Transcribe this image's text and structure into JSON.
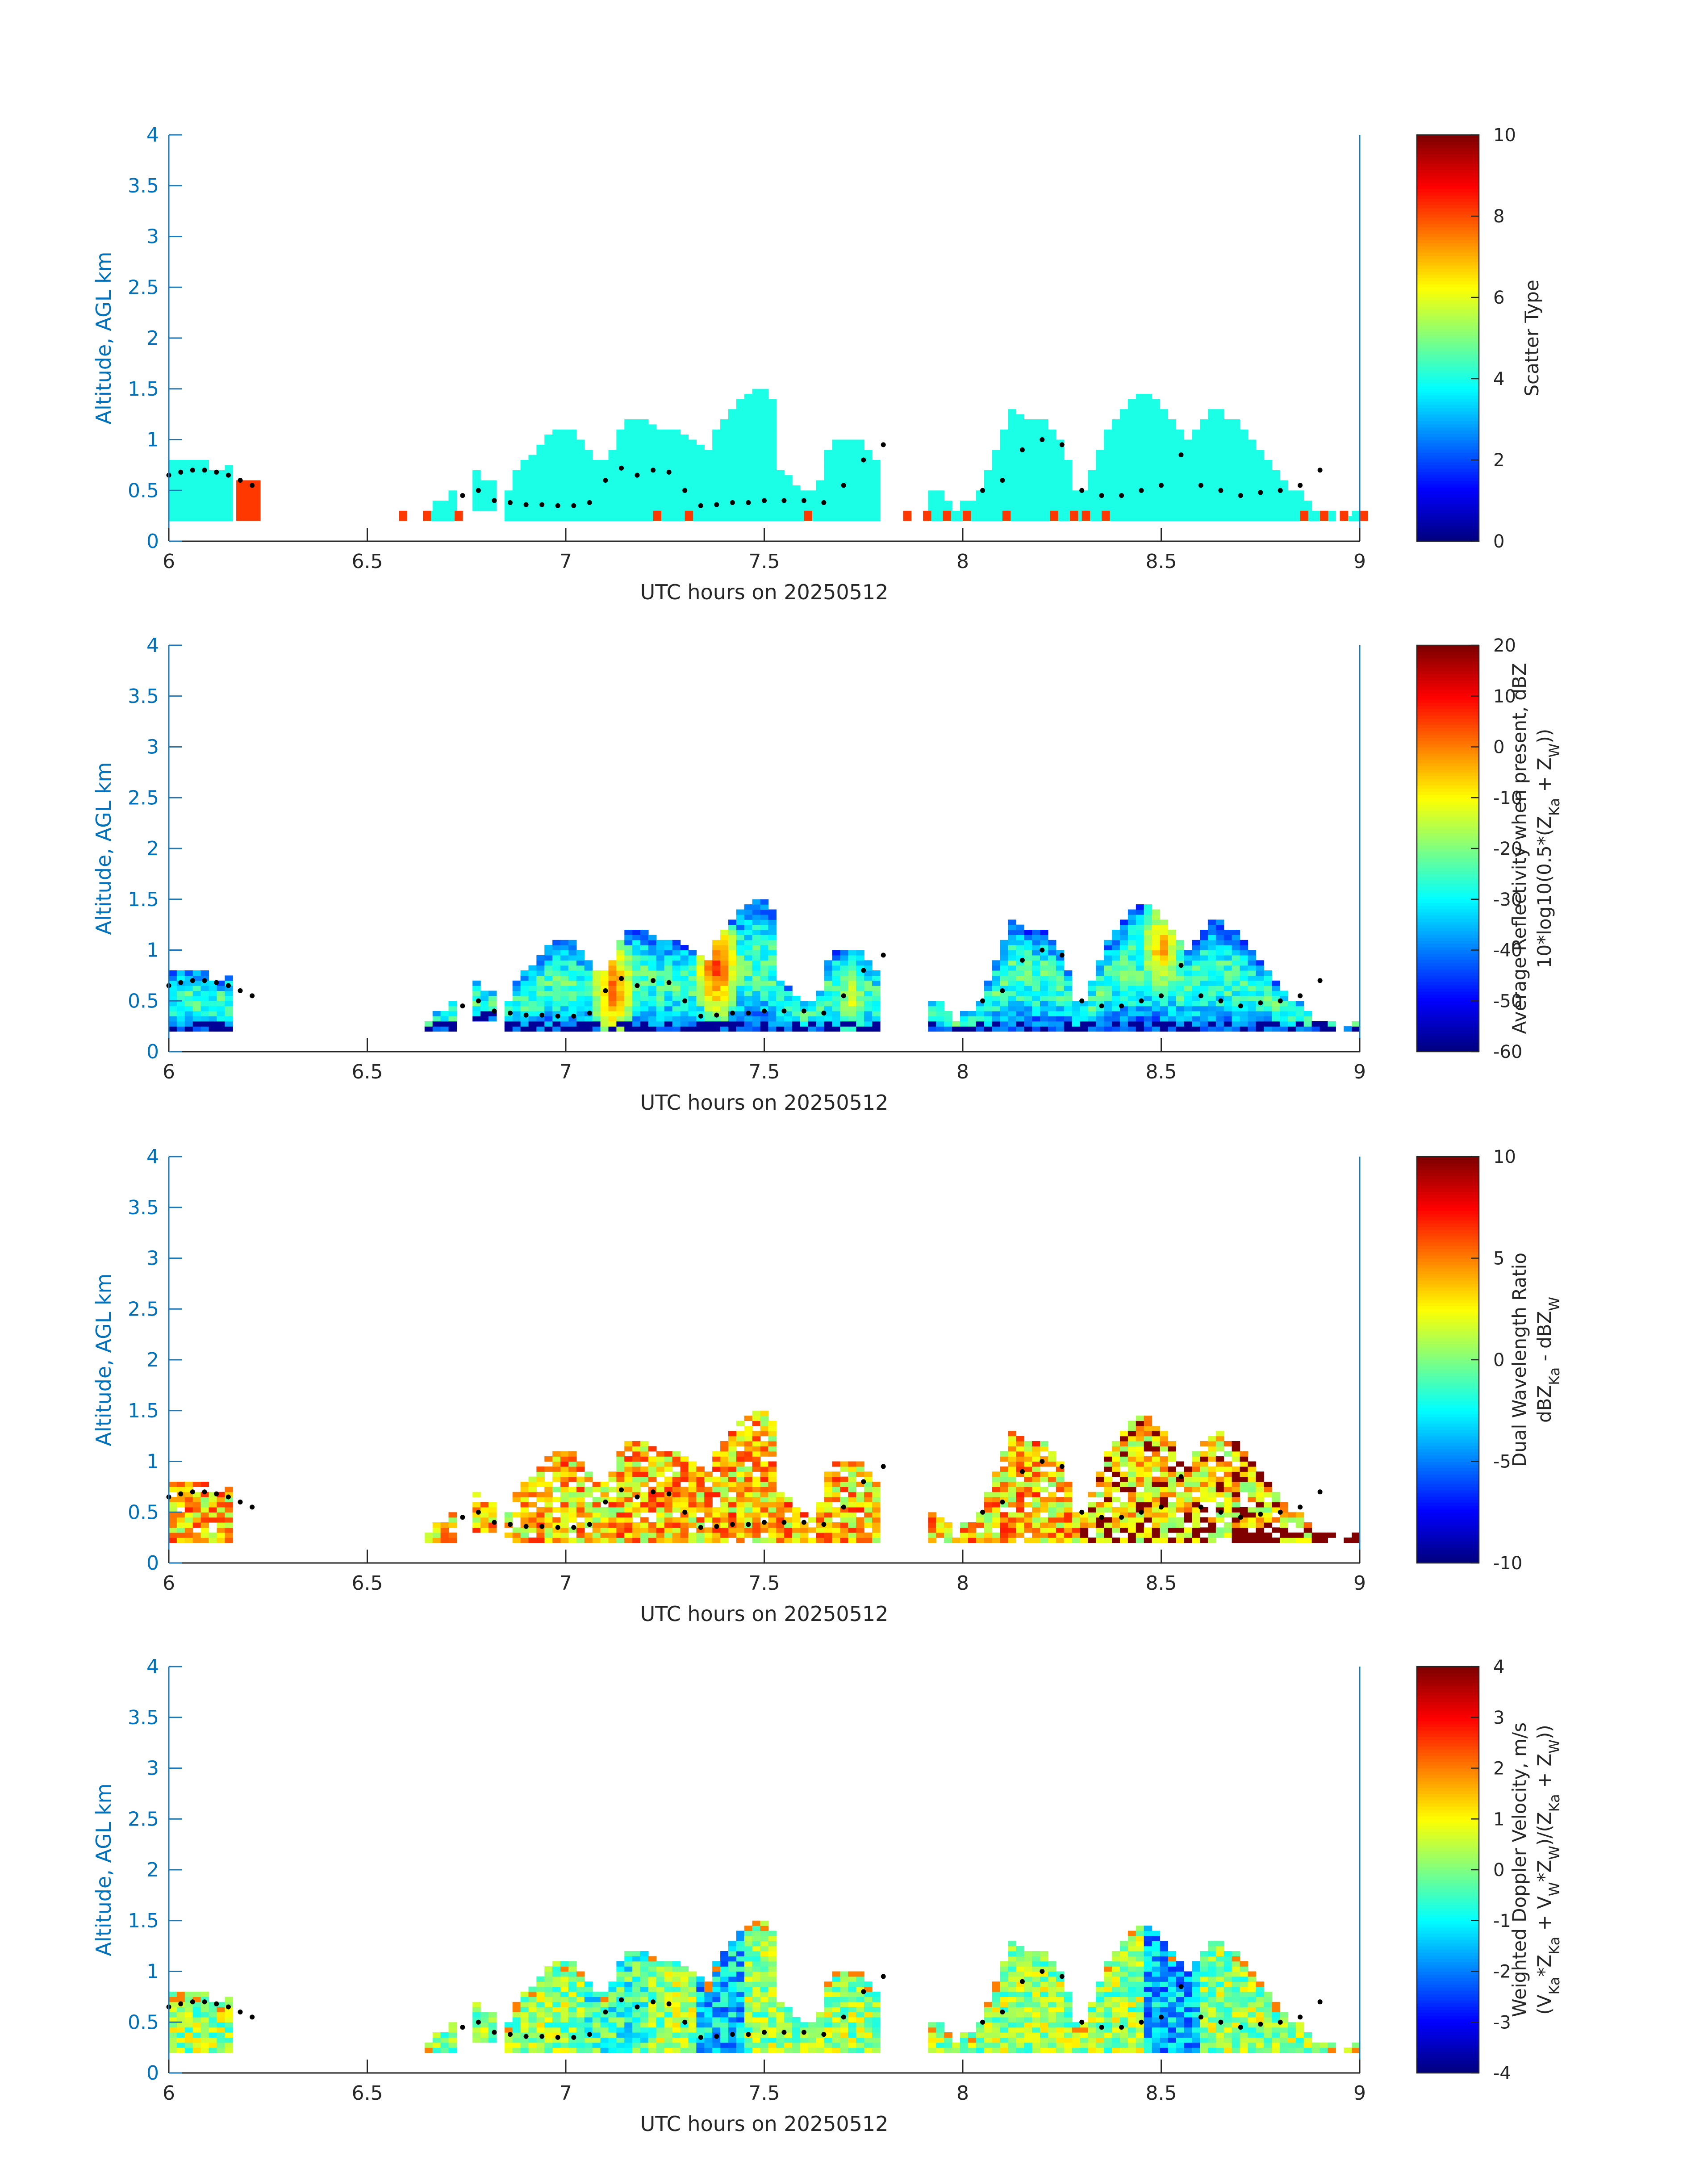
{
  "figure": {
    "panels_count": 4
  },
  "chart_data": [
    {
      "type": "heatmap",
      "title": "",
      "xlabel": "UTC hours on 20250512",
      "ylabel": "Altitude, AGL km",
      "xlim": [
        6,
        9
      ],
      "ylim": [
        0,
        4
      ],
      "xticks": [
        6,
        6.5,
        7,
        7.5,
        8,
        8.5,
        9
      ],
      "yticks": [
        0,
        0.5,
        1,
        1.5,
        2,
        2.5,
        3,
        3.5,
        4
      ],
      "colorbar": {
        "label_lines": [
          "Scatter Type"
        ],
        "ticks": [
          0,
          2,
          4,
          6,
          8,
          10
        ],
        "lim": [
          0,
          10
        ],
        "colormap": "jet"
      },
      "field": "scatter",
      "cloud_top_km": [
        0.8,
        0.8,
        0.8,
        0.8,
        0.8,
        0.7,
        0.7,
        0.75,
        0,
        0,
        0,
        0,
        0,
        0,
        0,
        0,
        0,
        0,
        0,
        0,
        0,
        0,
        0,
        0,
        0,
        0,
        0,
        0,
        0,
        0,
        0,
        0,
        0.3,
        0.4,
        0.4,
        0.5,
        0,
        0,
        0.7,
        0.6,
        0.6,
        0,
        0.5,
        0.7,
        0.8,
        0.85,
        0.95,
        1.05,
        1.1,
        1.1,
        1.1,
        1.0,
        0.9,
        0.8,
        0.8,
        0.9,
        1.1,
        1.2,
        1.2,
        1.2,
        1.15,
        1.1,
        1.1,
        1.1,
        1.05,
        1.0,
        0.95,
        0.9,
        1.1,
        1.2,
        1.3,
        1.4,
        1.45,
        1.5,
        1.5,
        1.4,
        0.7,
        0.65,
        0.55,
        0.5,
        0.5,
        0.6,
        0.9,
        1.0,
        1.0,
        1.0,
        1.0,
        0.9,
        0.8,
        0,
        0,
        0,
        0,
        0,
        0,
        0.5,
        0.5,
        0.4,
        0.3,
        0.4,
        0.4,
        0.5,
        0.7,
        0.9,
        1.1,
        1.3,
        1.25,
        1.2,
        1.2,
        1.2,
        1.1,
        1.0,
        0.8,
        0.5,
        0.5,
        0.7,
        0.9,
        1.1,
        1.2,
        1.3,
        1.4,
        1.45,
        1.45,
        1.4,
        1.3,
        1.2,
        1.1,
        1.0,
        1.1,
        1.2,
        1.3,
        1.3,
        1.2,
        1.2,
        1.1,
        1.0,
        0.9,
        0.8,
        0.7,
        0.6,
        0.5,
        0.5,
        0.4,
        0.3,
        0.3,
        0.3,
        0.2,
        0.25,
        0.3
      ],
      "cloud_base_km": [
        0.2,
        0.2,
        0.2,
        0.2,
        0.2,
        0.2,
        0.2,
        0.2,
        0,
        0,
        0,
        0,
        0,
        0,
        0,
        0,
        0,
        0,
        0,
        0,
        0,
        0,
        0,
        0,
        0,
        0,
        0,
        0,
        0,
        0,
        0,
        0,
        0.2,
        0.2,
        0.2,
        0.2,
        0,
        0,
        0.3,
        0.3,
        0.3,
        0,
        0.2,
        0.2,
        0.2,
        0.2,
        0.2,
        0.2,
        0.2,
        0.2,
        0.2,
        0.2,
        0.2,
        0.2,
        0.2,
        0.2,
        0.2,
        0.2,
        0.2,
        0.2,
        0.2,
        0.2,
        0.2,
        0.2,
        0.2,
        0.2,
        0.2,
        0.2,
        0.2,
        0.2,
        0.2,
        0.2,
        0.2,
        0.2,
        0.2,
        0.2,
        0.2,
        0.2,
        0.2,
        0.2,
        0.2,
        0.2,
        0.2,
        0.2,
        0.2,
        0.2,
        0.2,
        0.2,
        0.2,
        0,
        0,
        0,
        0,
        0,
        0,
        0.2,
        0.2,
        0.2,
        0.2,
        0.2,
        0.2,
        0.2,
        0.2,
        0.2,
        0.2,
        0.2,
        0.2,
        0.2,
        0.2,
        0.2,
        0.2,
        0.2,
        0.2,
        0.2,
        0.2,
        0.2,
        0.2,
        0.2,
        0.2,
        0.2,
        0.2,
        0.2,
        0.2,
        0.2,
        0.2,
        0.2,
        0.2,
        0.2,
        0.2,
        0.2,
        0.2,
        0.2,
        0.2,
        0.2,
        0.2,
        0.2,
        0.2,
        0.2,
        0.2,
        0.2,
        0.2,
        0.2,
        0.2,
        0.2,
        0.2,
        0.2,
        0.2,
        0.2,
        0.2,
        0.2
      ],
      "bottom_red_hours": [
        6.58,
        6.64,
        6.72,
        7.22,
        7.3,
        7.6,
        7.85,
        7.9,
        7.95,
        8.0,
        8.1,
        8.22,
        8.27,
        8.3,
        8.35,
        8.85,
        8.9,
        8.95,
        9.0
      ]
    },
    {
      "type": "heatmap",
      "title": "",
      "xlabel": "UTC hours on 20250512",
      "ylabel": "Altitude, AGL km",
      "xlim": [
        6,
        9
      ],
      "ylim": [
        0,
        4
      ],
      "xticks": [
        6,
        6.5,
        7,
        7.5,
        8,
        8.5,
        9
      ],
      "yticks": [
        0,
        0.5,
        1,
        1.5,
        2,
        2.5,
        3,
        3.5,
        4
      ],
      "colorbar": {
        "label_lines": [
          "Average Reflectivity when present, dBZ",
          "10*log10(0.5*(Z_Ka + Z_W))"
        ],
        "ticks": [
          -60,
          -50,
          -40,
          -30,
          -20,
          -10,
          0,
          10,
          20
        ],
        "lim": [
          -60,
          20
        ],
        "colormap": "jet"
      },
      "field": "reflectivity",
      "cores": [
        {
          "hour": 7.12,
          "alt_km": 0.6,
          "dbz": 5
        },
        {
          "hour": 7.38,
          "alt_km": 0.8,
          "dbz": 8
        },
        {
          "hour": 8.5,
          "alt_km": 1.0,
          "dbz": 0
        },
        {
          "hour": 7.72,
          "alt_km": 0.5,
          "dbz": -10
        }
      ]
    },
    {
      "type": "heatmap",
      "title": "",
      "xlabel": "UTC hours on 20250512",
      "ylabel": "Altitude, AGL km",
      "xlim": [
        6,
        9
      ],
      "ylim": [
        0,
        4
      ],
      "xticks": [
        6,
        6.5,
        7,
        7.5,
        8,
        8.5,
        9
      ],
      "yticks": [
        0,
        0.5,
        1,
        1.5,
        2,
        2.5,
        3,
        3.5,
        4
      ],
      "colorbar": {
        "label_lines": [
          "Dual Wavelength Ratio",
          "dBZ_Ka - dBZ_W"
        ],
        "ticks": [
          -10,
          -5,
          0,
          5,
          10
        ],
        "lim": [
          -10,
          10
        ],
        "colormap": "jet"
      },
      "field": "dwr"
    },
    {
      "type": "heatmap",
      "title": "",
      "xlabel": "UTC hours on 20250512",
      "ylabel": "Altitude, AGL km",
      "xlim": [
        6,
        9
      ],
      "ylim": [
        0,
        4
      ],
      "xticks": [
        6,
        6.5,
        7,
        7.5,
        8,
        8.5,
        9
      ],
      "yticks": [
        0,
        0.5,
        1,
        1.5,
        2,
        2.5,
        3,
        3.5,
        4
      ],
      "colorbar": {
        "label_lines": [
          "Weighted Doppler Velocity, m/s",
          "(V_Ka*Z_Ka + V_W*Z_W)/(Z_Ka + Z_W))"
        ],
        "ticks": [
          -4,
          -3,
          -2,
          -1,
          0,
          1,
          2,
          3,
          4
        ],
        "lim": [
          -4,
          4
        ],
        "colormap": "jet"
      },
      "field": "velocity"
    }
  ],
  "cloud_base_dots": {
    "hours": [
      6.0,
      6.03,
      6.06,
      6.09,
      6.12,
      6.15,
      6.18,
      6.21,
      6.74,
      6.78,
      6.82,
      6.86,
      6.9,
      6.94,
      6.98,
      7.02,
      7.06,
      7.1,
      7.14,
      7.18,
      7.22,
      7.26,
      7.3,
      7.34,
      7.38,
      7.42,
      7.46,
      7.5,
      7.55,
      7.6,
      7.65,
      7.7,
      7.75,
      7.8,
      8.05,
      8.1,
      8.15,
      8.2,
      8.25,
      8.3,
      8.35,
      8.4,
      8.45,
      8.5,
      8.55,
      8.6,
      8.65,
      8.7,
      8.75,
      8.8,
      8.85,
      8.9
    ],
    "alt_km": [
      0.65,
      0.68,
      0.7,
      0.7,
      0.68,
      0.65,
      0.6,
      0.55,
      0.45,
      0.5,
      0.4,
      0.38,
      0.36,
      0.36,
      0.35,
      0.35,
      0.38,
      0.6,
      0.72,
      0.65,
      0.7,
      0.68,
      0.5,
      0.35,
      0.36,
      0.38,
      0.38,
      0.4,
      0.4,
      0.4,
      0.38,
      0.55,
      0.8,
      0.95,
      0.5,
      0.6,
      0.9,
      1.0,
      0.95,
      0.5,
      0.45,
      0.45,
      0.5,
      0.55,
      0.85,
      0.55,
      0.5,
      0.45,
      0.48,
      0.5,
      0.55,
      0.7
    ]
  }
}
